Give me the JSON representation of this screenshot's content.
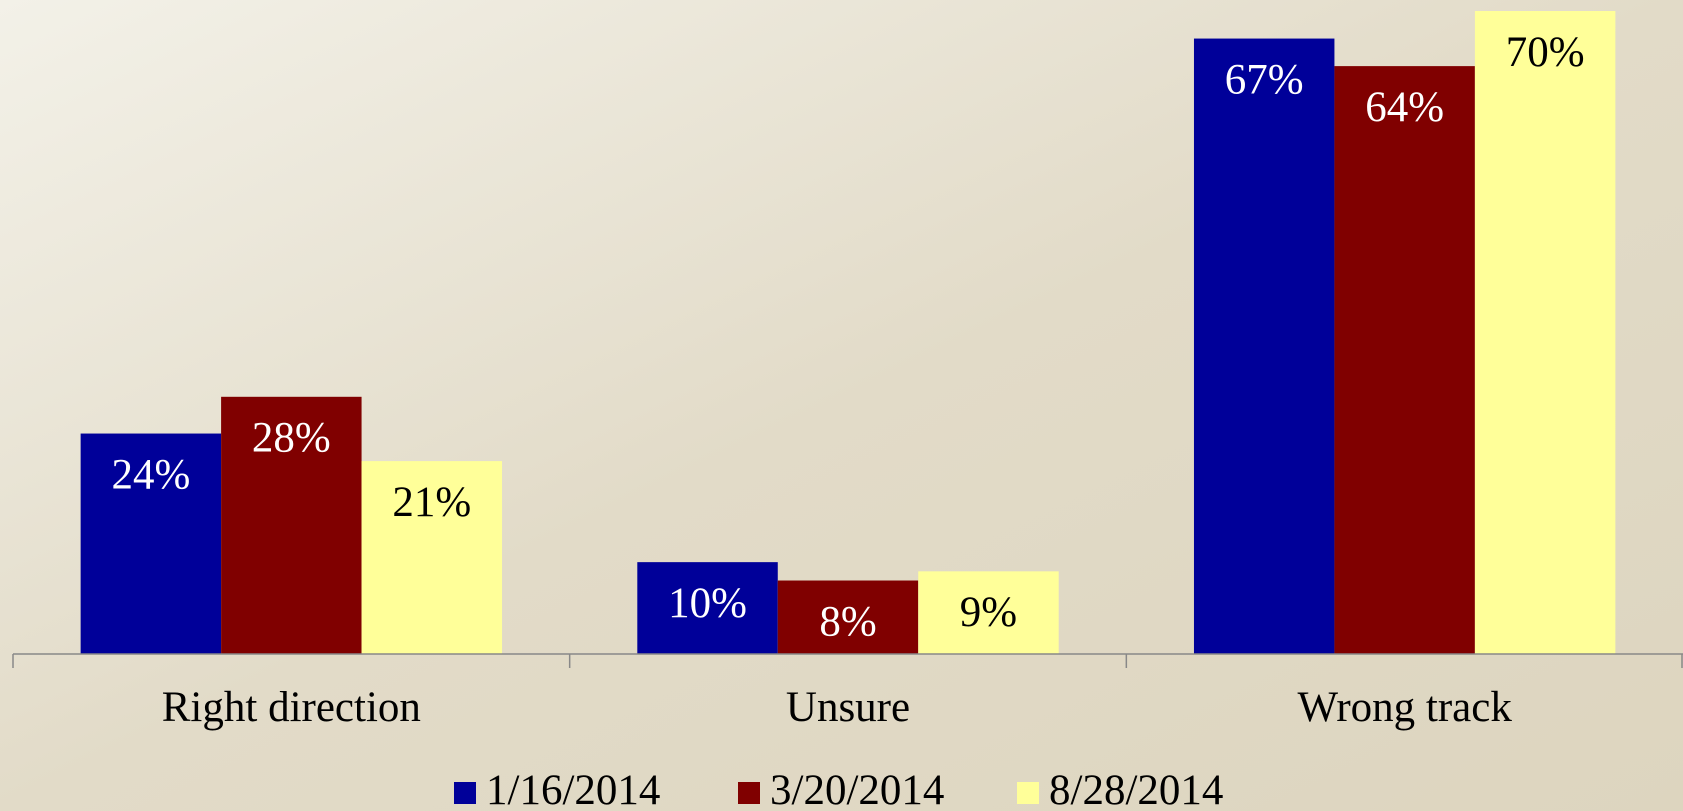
{
  "chart_data": {
    "type": "bar",
    "categories": [
      "Right direction",
      "Unsure",
      "Wrong track"
    ],
    "series": [
      {
        "name": "1/16/2014",
        "color": "#000099",
        "label_color": "#ffffff",
        "values": [
          24,
          10,
          67
        ],
        "value_labels": [
          "24%",
          "10%",
          "67%"
        ]
      },
      {
        "name": "3/20/2014",
        "color": "#800000",
        "label_color": "#ffffff",
        "values": [
          28,
          8,
          64
        ],
        "value_labels": [
          "28%",
          "8%",
          "64%"
        ]
      },
      {
        "name": "8/28/2014",
        "color": "#ffff99",
        "label_color": "#000000",
        "values": [
          21,
          9,
          70
        ],
        "value_labels": [
          "21%",
          "9%",
          "70%"
        ]
      }
    ],
    "legend": "bottom"
  }
}
